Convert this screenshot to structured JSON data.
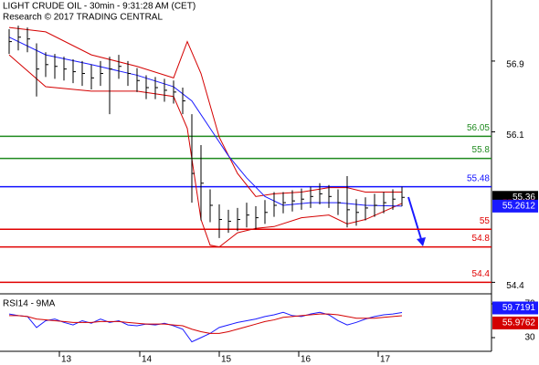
{
  "chart_data": [
    {
      "type": "hlc",
      "title": "LIGHT CRUDE OIL - 30min - 9:31:28 AM (CET)",
      "subtitle": "Research © 2017 TRADING CENTRAL",
      "xlim": [
        0,
        53.8
      ],
      "xticks": [
        {
          "value": 6.5,
          "label": "13"
        },
        {
          "value": 15.3,
          "label": "14"
        },
        {
          "value": 24,
          "label": "15"
        },
        {
          "value": 32.7,
          "label": "16"
        },
        {
          "value": 41.4,
          "label": "17"
        }
      ],
      "ylim": [
        54.27,
        57.59
      ],
      "yticks": [
        56.9,
        56.1,
        54.4
      ],
      "color": "#000000",
      "x": [
        1,
        2,
        3,
        4,
        5,
        6,
        7,
        8,
        9,
        10,
        11,
        12,
        13,
        14,
        15,
        16,
        17,
        18,
        19,
        20,
        21,
        22,
        23,
        24,
        25,
        26,
        27,
        28,
        29,
        30,
        31,
        32,
        33,
        34,
        35,
        36,
        37,
        38,
        39,
        40,
        41,
        42,
        43,
        44
      ],
      "high": [
        57.26,
        57.3,
        57.28,
        57.1,
        57.0,
        56.98,
        56.95,
        56.92,
        56.9,
        56.86,
        56.9,
        56.95,
        56.97,
        56.9,
        56.82,
        56.74,
        56.72,
        56.7,
        56.68,
        56.6,
        56.3,
        55.95,
        55.45,
        55.28,
        55.22,
        55.24,
        55.3,
        55.26,
        55.33,
        55.42,
        55.42,
        55.44,
        55.46,
        55.48,
        55.52,
        55.5,
        55.45,
        55.6,
        55.34,
        55.36,
        55.4,
        55.42,
        55.45,
        55.48
      ],
      "low": [
        56.98,
        57.02,
        57.0,
        56.5,
        56.72,
        56.7,
        56.68,
        56.65,
        56.62,
        56.58,
        56.62,
        56.3,
        56.7,
        56.62,
        56.55,
        56.47,
        56.47,
        56.44,
        56.42,
        56.3,
        55.3,
        55.1,
        55.08,
        54.9,
        54.96,
        54.98,
        55.02,
        55.0,
        55.06,
        55.14,
        55.18,
        55.2,
        55.22,
        55.24,
        55.28,
        55.24,
        55.16,
        55.02,
        55.04,
        55.1,
        55.14,
        55.18,
        55.22,
        55.26
      ],
      "close": [
        57.12,
        57.17,
        57.15,
        56.81,
        56.86,
        56.84,
        56.81,
        56.78,
        56.76,
        56.71,
        56.76,
        56.81,
        56.84,
        56.76,
        56.68,
        56.6,
        56.6,
        56.57,
        56.55,
        56.45,
        55.63,
        55.52,
        55.27,
        55.11,
        55.09,
        55.11,
        55.16,
        55.13,
        55.19,
        55.27,
        55.3,
        55.32,
        55.34,
        55.37,
        55.4,
        55.37,
        55.3,
        55.22,
        55.19,
        55.24,
        55.27,
        55.3,
        55.34,
        55.36
      ],
      "series": [
        {
          "color": "#d40000",
          "x": [
            1,
            5,
            10,
            15,
            19,
            20.5,
            22,
            24,
            26,
            28,
            30,
            33,
            36,
            38,
            40,
            44
          ],
          "values": [
            57.28,
            57.23,
            56.97,
            56.84,
            56.71,
            57.12,
            56.76,
            56.04,
            55.63,
            55.37,
            55.4,
            55.42,
            55.47,
            55.47,
            55.42,
            55.42
          ]
        },
        {
          "color": "#d40000",
          "x": [
            1,
            5,
            10,
            15,
            19,
            20.5,
            22,
            23,
            24,
            26,
            28,
            30,
            33,
            36,
            38,
            40,
            44
          ],
          "values": [
            56.97,
            56.61,
            56.56,
            56.56,
            56.5,
            56.14,
            55.11,
            54.82,
            54.8,
            54.96,
            55.01,
            55.03,
            55.13,
            55.16,
            55.06,
            55.11,
            55.2915
          ]
        },
        {
          "color": "#1a1aff",
          "x": [
            1,
            5,
            10,
            15,
            19,
            21,
            23,
            25,
            27,
            29,
            31,
            34,
            37,
            40,
            44
          ],
          "values": [
            57.17,
            56.97,
            56.86,
            56.74,
            56.61,
            56.45,
            56.14,
            55.83,
            55.58,
            55.37,
            55.27,
            55.3,
            55.3,
            55.27,
            55.2612
          ]
        }
      ],
      "levels": [
        {
          "value": 56.05,
          "color": "#1f8a1f"
        },
        {
          "value": 55.8,
          "color": "#1f8a1f"
        },
        {
          "value": 55.48,
          "color": "#1010ff"
        },
        {
          "value": 55,
          "color": "#e00000"
        },
        {
          "value": 54.8,
          "color": "#e00000"
        },
        {
          "value": 54.4,
          "color": "#e00000"
        }
      ]
    },
    {
      "type": "line",
      "title": "RSI14 - 9MA",
      "xlim": [
        0,
        53.8
      ],
      "ylim": [
        13.8,
        78.6
      ],
      "yticks": [
        70,
        30
      ],
      "x": [
        1,
        2,
        3,
        4,
        5,
        6,
        7,
        8,
        9,
        10,
        11,
        12,
        13,
        14,
        15,
        16,
        17,
        18,
        19,
        20,
        21,
        22,
        23,
        24,
        25,
        26,
        27,
        28,
        29,
        30,
        31,
        32,
        33,
        34,
        35,
        36,
        37,
        38,
        39,
        40,
        41,
        42,
        43,
        44
      ],
      "series": [
        {
          "color": "#1a1aff",
          "values": [
            58,
            56,
            55,
            42,
            50,
            52,
            48,
            45,
            50,
            47,
            52,
            48,
            50,
            45,
            44,
            46,
            45,
            47,
            44,
            40,
            25,
            30,
            35,
            42,
            45,
            48,
            50,
            52,
            55,
            57,
            60,
            56,
            55,
            58,
            60,
            57,
            50,
            45,
            48,
            52,
            55,
            57,
            58,
            59.7191
          ]
        },
        {
          "color": "#d40000",
          "values": [
            56,
            56,
            55,
            52,
            51,
            50,
            49,
            48,
            48,
            48,
            49,
            49,
            49,
            48,
            47,
            46,
            46,
            46,
            45,
            44,
            40,
            37,
            35,
            35,
            37,
            40,
            43,
            46,
            49,
            51,
            54,
            55,
            56,
            57,
            58,
            58,
            57,
            55,
            53,
            53,
            53,
            54,
            55,
            55.9762
          ]
        }
      ]
    }
  ]
}
